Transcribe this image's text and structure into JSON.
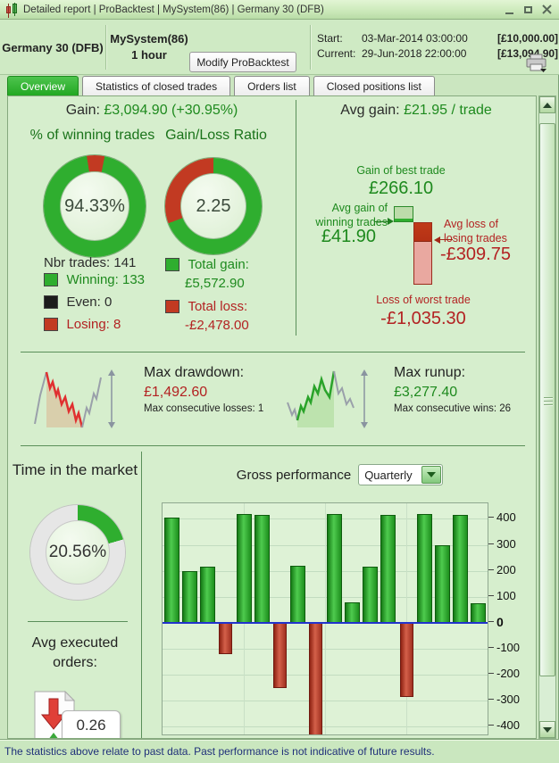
{
  "window": {
    "title": "Detailed report | ProBacktest | MySystem(86) | Germany 30 (DFB)"
  },
  "header": {
    "instrument": "Germany 30 (DFB)",
    "system": "MySystem(86)",
    "timeframe": "1 hour",
    "modify_button": "Modify ProBacktest",
    "start_label": "Start:",
    "start_datetime": "03-Mar-2014 03:00:00",
    "start_value": "[£10,000.00]",
    "current_label": "Current:",
    "current_datetime": "29-Jun-2018 22:00:00",
    "current_value": "[£13,094.90]"
  },
  "tabs": [
    {
      "label": "Overview",
      "active": true
    },
    {
      "label": "Statistics of closed trades",
      "active": false
    },
    {
      "label": "Orders list",
      "active": false
    },
    {
      "label": "Closed positions list",
      "active": false
    }
  ],
  "overview": {
    "gain_label": "Gain:",
    "gain_value": "£3,094.90 (+30.95%)",
    "avg_gain_label": "Avg gain:",
    "avg_gain_value": "£21.95 / trade",
    "winning_donut": {
      "title": "% of winning trades",
      "center_text": "94.33%",
      "green_pct": 94.33,
      "red_pct": 5.67
    },
    "ratio_donut": {
      "title": "Gain/Loss Ratio",
      "center_text": "2.25",
      "green_pct": 69.2,
      "red_pct": 30.8
    },
    "trades": {
      "nbr_label": "Nbr trades:",
      "nbr": "141",
      "winning_label": "Winning:",
      "winning": "133",
      "even_label": "Even:",
      "even": "0",
      "losing_label": "Losing:",
      "losing": "8"
    },
    "totals": {
      "gain_label": "Total gain:",
      "gain": "£5,572.90",
      "loss_label": "Total loss:",
      "loss": "-£2,478.00"
    },
    "best_worst": {
      "best_label": "Gain of best trade",
      "best": "£266.10",
      "avg_win_label": "Avg gain of winning trades",
      "avg_win": "£41.90",
      "avg_loss_label": "Avg loss of losing trades",
      "avg_loss": "-£309.75",
      "worst_label": "Loss of worst trade",
      "worst": "-£1,035.30"
    }
  },
  "drawdown": {
    "title": "Max drawdown:",
    "value": "£1,492.60",
    "sub": "Max consecutive losses: 1"
  },
  "runup": {
    "title": "Max runup:",
    "value": "£3,277.40",
    "sub": "Max consecutive wins: 26"
  },
  "time_in_market": {
    "title": "Time in the market",
    "center_text": "20.56%",
    "pct": 20.56
  },
  "avg_orders": {
    "title": "Avg executed orders:",
    "value": "0.26"
  },
  "gross_performance": {
    "title": "Gross performance",
    "period": "Quarterly"
  },
  "chart_data": {
    "type": "bar",
    "title": "Gross performance (Quarterly)",
    "values": [
      405,
      200,
      215,
      -120,
      420,
      415,
      -250,
      220,
      -440,
      420,
      80,
      215,
      415,
      -285,
      420,
      300,
      415,
      75
    ],
    "yticks": [
      400,
      300,
      200,
      100,
      0,
      -100,
      -200,
      -300,
      -400
    ],
    "ylim": [
      -430,
      460
    ],
    "grid": true,
    "positive_color": "#22a022",
    "negative_color": "#c23a28",
    "zero_line_color": "#2233cc"
  },
  "status_bar": {
    "text": "The statistics above relate to past data. Past performance is not indicative of future results."
  },
  "colors": {
    "active_tab": "#2eb42e",
    "value_green": "#1e8a1e",
    "value_red": "#b32222",
    "donut_green": "#2fae2f",
    "donut_red": "#c23a22",
    "donut_gray": "#e6e6e6",
    "win": "#2fae2f",
    "even": "#1c1c1c",
    "lose": "#c23a22"
  }
}
